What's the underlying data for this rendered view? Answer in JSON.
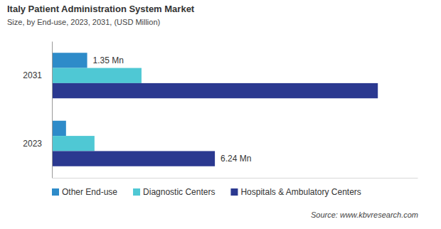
{
  "chart_data": {
    "type": "bar",
    "orientation": "horizontal",
    "title": "Italy Patient Administration System Market",
    "subtitle": "Size, by End-use, 2023, 2031, (USD Million)",
    "source": "Source: www.kbvresearch.com",
    "categories": [
      "2031",
      "2023"
    ],
    "series": [
      {
        "name": "Other End-use",
        "color": "#2e8bc9",
        "values": [
          1.35,
          0.54
        ],
        "value_labels": [
          "1.35 Mn",
          null
        ]
      },
      {
        "name": "Diagnostic Centers",
        "color": "#4fc8d4",
        "values": [
          3.43,
          1.63
        ]
      },
      {
        "name": "Hospitals & Ambulatory Centers",
        "color": "#2b3990",
        "values": [
          12.48,
          6.24
        ],
        "value_labels": [
          null,
          "6.24 Mn"
        ]
      }
    ],
    "xlim": [
      0,
      14
    ],
    "data_labels": true,
    "tick_labels": "y",
    "grid": false,
    "legend": "bottom"
  }
}
